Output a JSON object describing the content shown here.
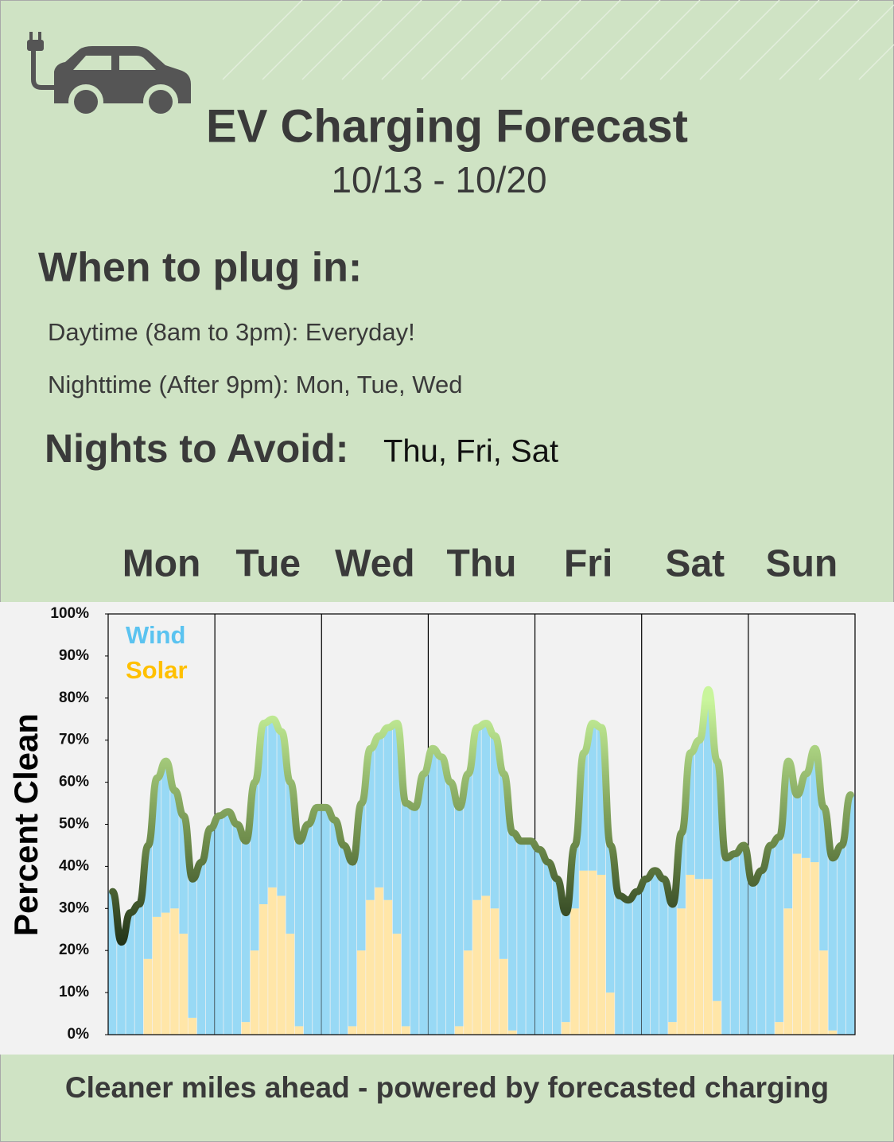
{
  "header": {
    "title": "EV Charging Forecast",
    "dates": "10/13 - 10/20"
  },
  "plug_in": {
    "heading": "When to plug in:",
    "daytime": "Daytime (8am to 3pm): Everyday!",
    "nighttime": "Nighttime  (After 9pm): Mon, Tue, Wed"
  },
  "avoid": {
    "heading": "Nights to Avoid:",
    "days": "Thu, Fri, Sat"
  },
  "footer": "Cleaner miles ahead - powered by forecasted charging",
  "chart_data": {
    "type": "bar",
    "stacked": true,
    "total_line": true,
    "days": [
      "Mon",
      "Tue",
      "Wed",
      "Thu",
      "Fri",
      "Sat",
      "Sun"
    ],
    "x": [
      0,
      2,
      4,
      6,
      8,
      10,
      12,
      14,
      16,
      18,
      20,
      22,
      24,
      26,
      28,
      30,
      32,
      34,
      36,
      38,
      40,
      42,
      44,
      46,
      48,
      50,
      52,
      54,
      56,
      58,
      60,
      62,
      64,
      66,
      68,
      70,
      72,
      74,
      76,
      78,
      80,
      82,
      84,
      86,
      88,
      90,
      92,
      94,
      96,
      98,
      100,
      102,
      104,
      106,
      108,
      110,
      112,
      114,
      116,
      118,
      120,
      122,
      124,
      126,
      128,
      130,
      132,
      134,
      136,
      138,
      140,
      142,
      144,
      146,
      148,
      150,
      152,
      154,
      156,
      158,
      160,
      162,
      164,
      166
    ],
    "xlim": [
      0,
      168
    ],
    "series": [
      {
        "name": "Solar",
        "color": "#ffe6a8",
        "label_color": "#ffc000",
        "values": [
          0,
          0,
          0,
          0,
          18,
          28,
          29,
          30,
          24,
          4,
          0,
          0,
          0,
          0,
          0,
          3,
          20,
          31,
          35,
          33,
          24,
          2,
          0,
          0,
          0,
          0,
          0,
          2,
          20,
          32,
          35,
          32,
          24,
          2,
          0,
          0,
          0,
          0,
          0,
          2,
          20,
          32,
          33,
          30,
          18,
          1,
          0,
          0,
          0,
          0,
          0,
          3,
          30,
          39,
          39,
          38,
          10,
          0,
          0,
          0,
          0,
          0,
          0,
          3,
          30,
          38,
          37,
          37,
          8,
          0,
          0,
          0,
          0,
          0,
          0,
          3,
          30,
          43,
          42,
          41,
          20,
          1,
          0,
          0
        ]
      },
      {
        "name": "Wind",
        "color": "#98d9f5",
        "label_color": "#5bc3f0",
        "values": [
          34,
          22,
          29,
          31,
          27,
          33,
          36,
          28,
          28,
          33,
          41,
          49,
          52,
          53,
          50,
          43,
          40,
          43,
          40,
          39,
          36,
          44,
          50,
          54,
          54,
          51,
          45,
          39,
          35,
          36,
          36,
          41,
          50,
          53,
          54,
          62,
          68,
          66,
          60,
          52,
          42,
          41,
          41,
          41,
          44,
          47,
          46,
          46,
          44,
          41,
          37,
          26,
          15,
          28,
          35,
          35,
          35,
          33,
          32,
          34,
          37,
          39,
          37,
          28,
          18,
          29,
          33,
          45,
          57,
          42,
          43,
          45,
          36,
          39,
          45,
          44,
          35,
          14,
          20,
          27,
          34,
          41,
          45,
          57
        ]
      }
    ],
    "ylim": [
      0,
      100
    ],
    "yticks": [
      {
        "value": 0,
        "label": "0%"
      },
      {
        "value": 10,
        "label": "10%"
      },
      {
        "value": 20,
        "label": "20%"
      },
      {
        "value": 30,
        "label": "30%"
      },
      {
        "value": 40,
        "label": "40%"
      },
      {
        "value": 50,
        "label": "50%"
      },
      {
        "value": 60,
        "label": "60%"
      },
      {
        "value": 70,
        "label": "70%"
      },
      {
        "value": 80,
        "label": "80%"
      },
      {
        "value": 90,
        "label": "90%"
      },
      {
        "value": 100,
        "label": "100%"
      }
    ],
    "ylabel": "Percent Clean"
  }
}
